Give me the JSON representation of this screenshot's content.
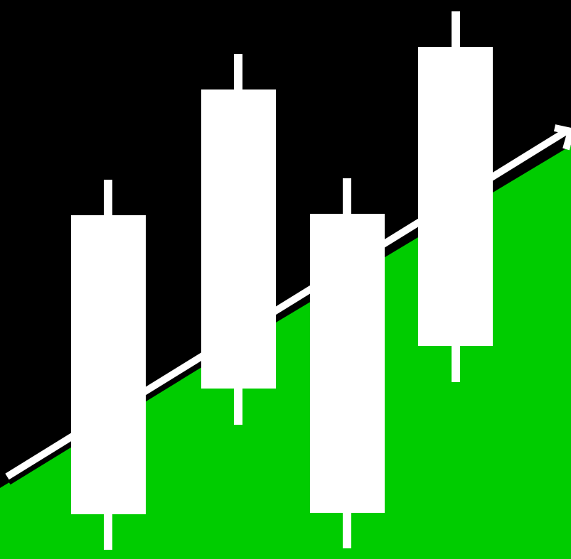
{
  "icon": "candlestick-uptrend-logo",
  "colors": {
    "background": "#000000",
    "area": "#00cc00",
    "candles": "#ffffff",
    "trend_line": "#ffffff",
    "trend_shadow": "#000000"
  },
  "candles": [
    {
      "label": "candle-1"
    },
    {
      "label": "candle-2"
    },
    {
      "label": "candle-3"
    },
    {
      "label": "candle-4"
    }
  ]
}
